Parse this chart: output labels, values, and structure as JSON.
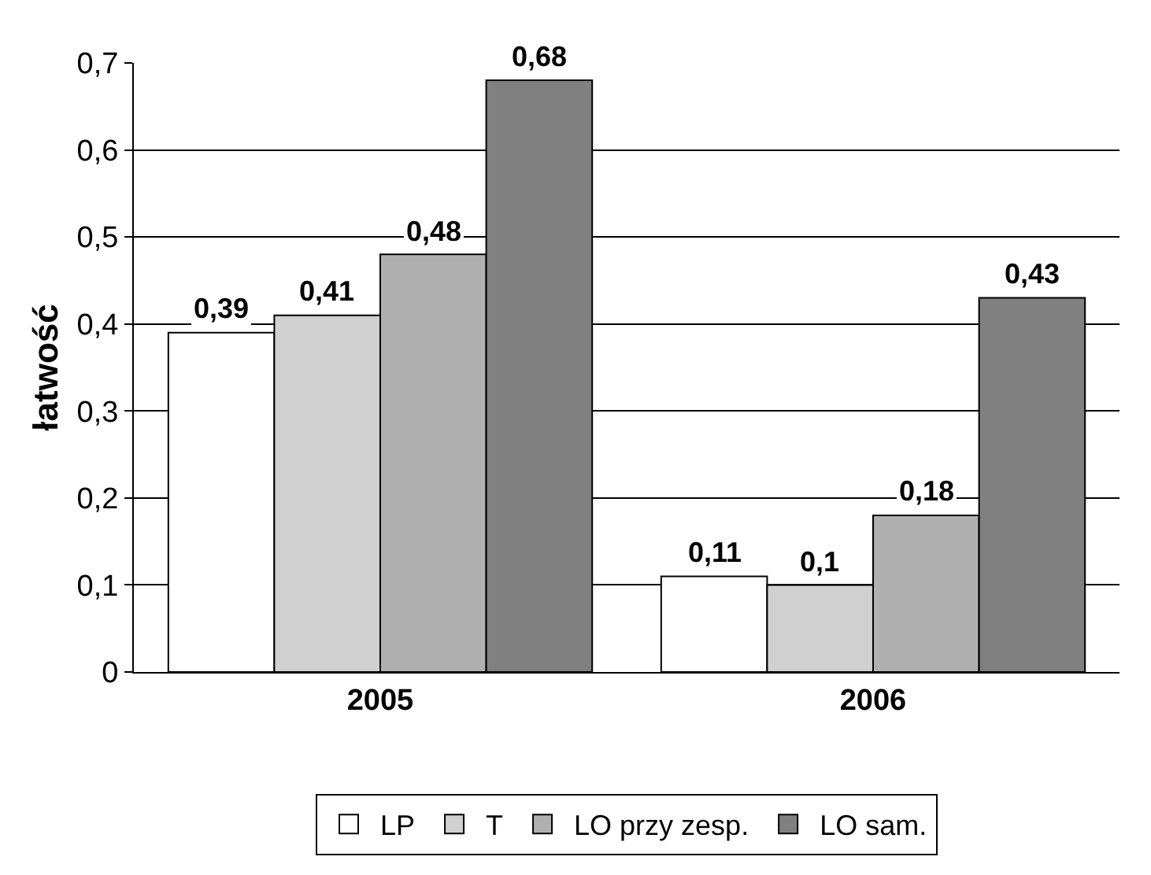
{
  "chart_data": {
    "type": "bar",
    "ylabel": "łatwość",
    "categories": [
      "2005",
      "2006"
    ],
    "series": [
      {
        "name": "LP",
        "color": "#ffffff",
        "values": [
          0.39,
          0.11
        ],
        "value_labels": [
          "0,39",
          "0,11"
        ]
      },
      {
        "name": "T",
        "color": "#d0d0d0",
        "values": [
          0.41,
          0.1
        ],
        "value_labels": [
          "0,41",
          "0,1"
        ]
      },
      {
        "name": "LO przy zesp.",
        "color": "#b0b0b0",
        "values": [
          0.48,
          0.18
        ],
        "value_labels": [
          "0,48",
          "0,18"
        ]
      },
      {
        "name": "LO sam.",
        "color": "#808080",
        "values": [
          0.68,
          0.43
        ],
        "value_labels": [
          "0,68",
          "0,43"
        ]
      }
    ],
    "ylim": [
      0,
      0.7
    ],
    "yticks": [
      0,
      {
        "value": 0.1,
        "label": "0,1"
      },
      {
        "value": 0.2,
        "label": "0,2"
      },
      {
        "value": 0.3,
        "label": "0,3"
      },
      {
        "value": 0.4,
        "label": "0,4"
      },
      {
        "value": 0.5,
        "label": "0,5"
      },
      {
        "value": 0.6,
        "label": "0,6"
      },
      {
        "value": 0.7,
        "label": "0,7"
      }
    ],
    "grid": "y",
    "legend": "bottom"
  }
}
